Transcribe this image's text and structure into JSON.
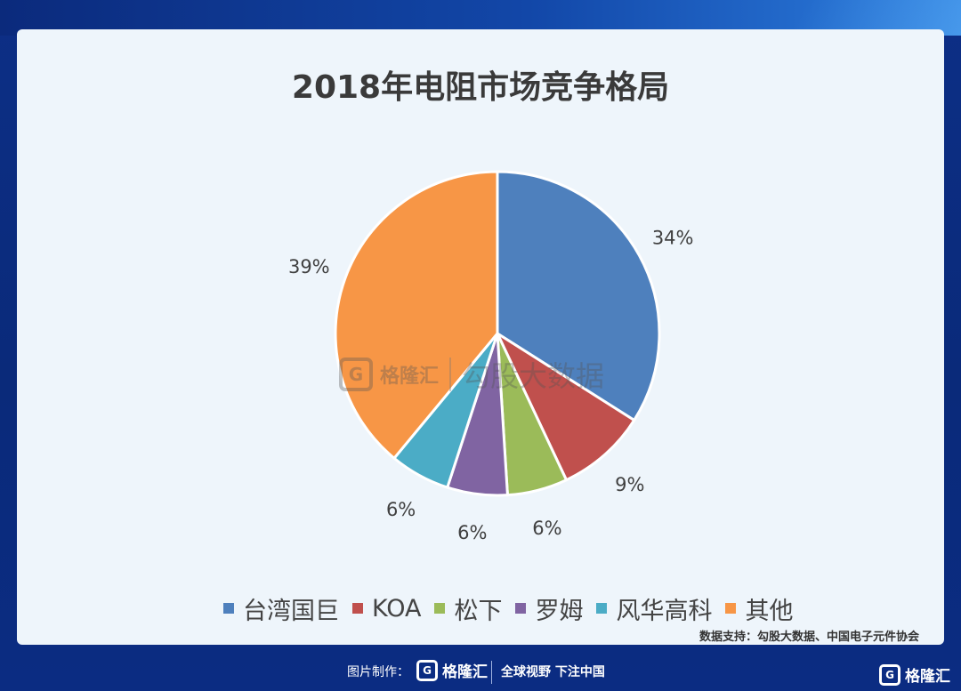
{
  "title": "2018年电阻市场竞争格局",
  "chart_data": {
    "type": "pie",
    "title": "2018年电阻市场竞争格局",
    "slices": [
      {
        "name": "台湾国巨",
        "value": 34,
        "label": "34%",
        "color": "#4e80bd"
      },
      {
        "name": "KOA",
        "value": 9,
        "label": "9%",
        "color": "#c0504d"
      },
      {
        "name": "松下",
        "value": 6,
        "label": "6%",
        "color": "#9bbb59"
      },
      {
        "name": "罗姆",
        "value": 6,
        "label": "6%",
        "color": "#8064a2"
      },
      {
        "name": "风华高科",
        "value": 6,
        "label": "6%",
        "color": "#4bacc6"
      },
      {
        "name": "其他",
        "value": 39,
        "label": "39%",
        "color": "#f79646"
      }
    ],
    "legend_position": "bottom"
  },
  "source": "数据支持：勾股大数据、中国电子元件协会",
  "watermark": {
    "logo_glyph": "G",
    "brand": "格隆汇",
    "text": "勾股大数据"
  },
  "footer": {
    "made_by": "图片制作：",
    "logo_glyph": "G",
    "brand": "格隆汇",
    "slogan": "全球视野 下注中国"
  },
  "corner_logo": {
    "logo_glyph": "G",
    "brand": "格隆汇"
  }
}
